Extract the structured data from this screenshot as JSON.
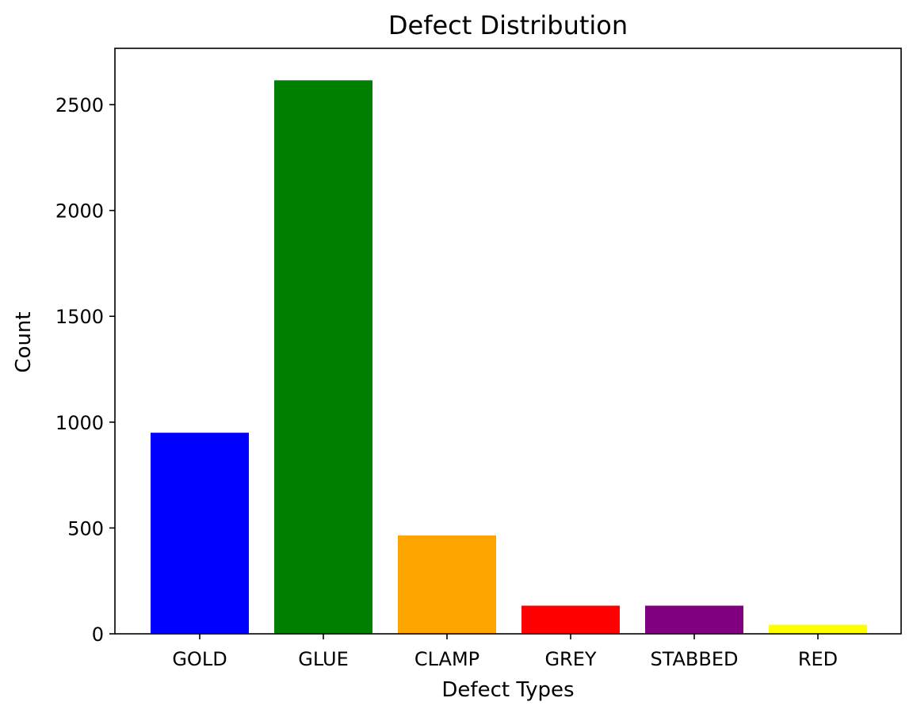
{
  "chart_data": {
    "type": "bar",
    "title": "Defect Distribution",
    "xlabel": "Defect Types",
    "ylabel": "Count",
    "categories": [
      "GOLD",
      "GLUE",
      "CLAMP",
      "GREY",
      "STABBED",
      "RED"
    ],
    "values": [
      950,
      2615,
      465,
      133,
      133,
      43
    ],
    "colors": [
      "#0000ff",
      "#008000",
      "#ffa500",
      "#ff0000",
      "#800080",
      "#ffff00"
    ],
    "ylim": [
      0,
      2766
    ],
    "yticks": [
      0,
      500,
      1000,
      1500,
      2000,
      2500
    ],
    "grid": false,
    "legend": false
  }
}
